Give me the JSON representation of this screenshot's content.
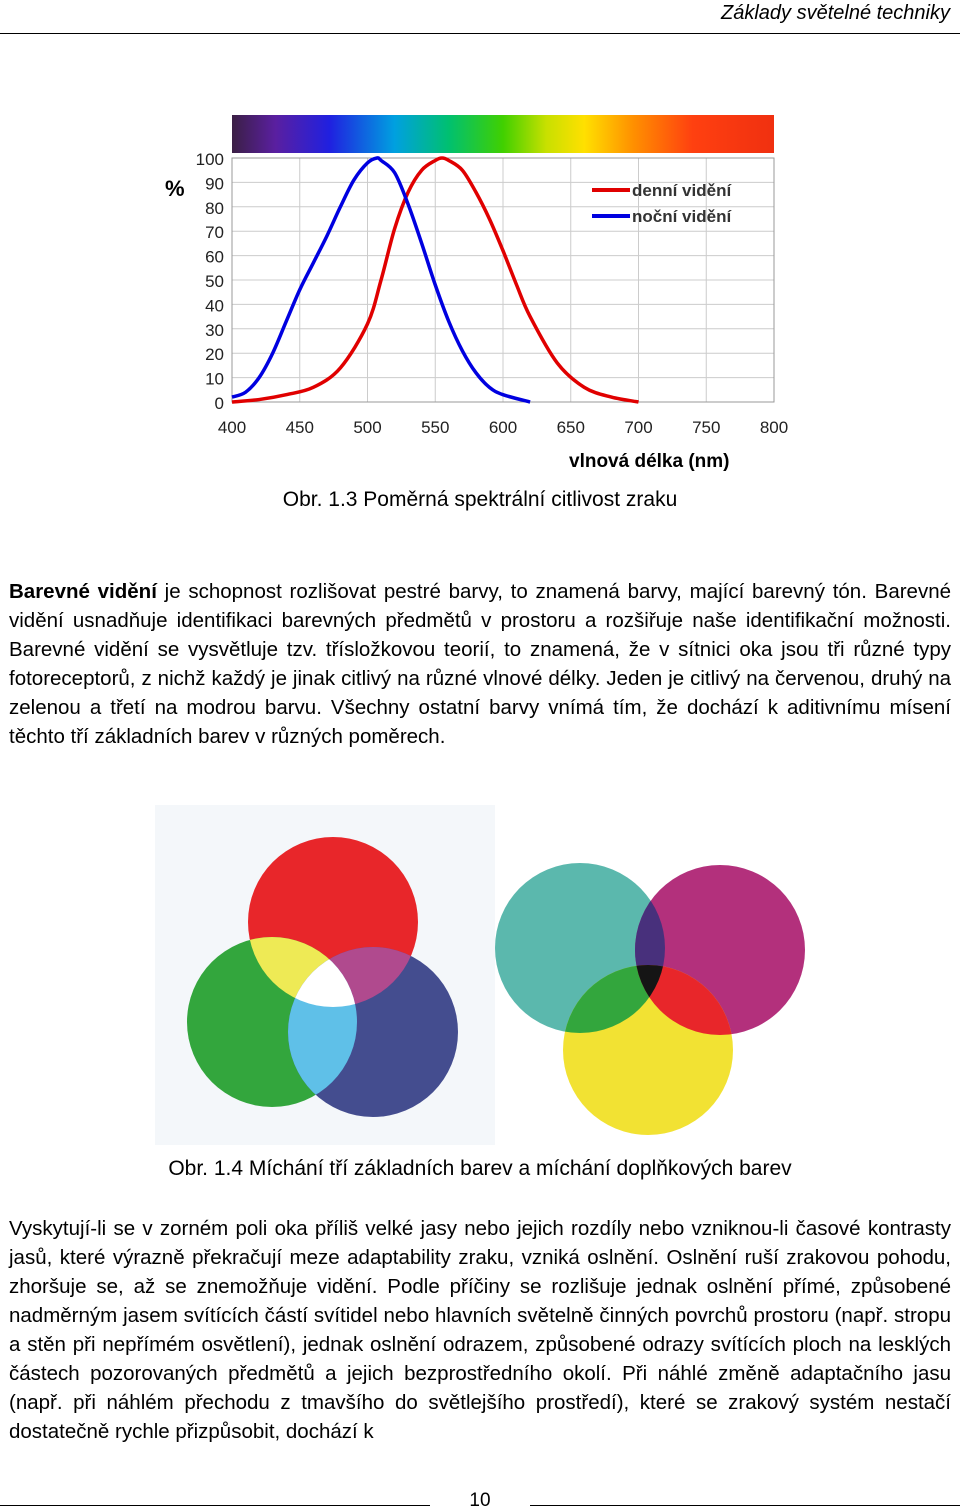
{
  "header": {
    "title": "Základy světelné techniky"
  },
  "chart_data": {
    "type": "line",
    "ylabel": "%",
    "xlabel": "vlnová délka (nm)",
    "xlim": [
      400,
      800
    ],
    "ylim": [
      0,
      100
    ],
    "xticks": [
      "400",
      "450",
      "500",
      "550",
      "600",
      "650",
      "700",
      "750",
      "800"
    ],
    "yticks": [
      "0",
      "10",
      "20",
      "30",
      "40",
      "50",
      "60",
      "70",
      "80",
      "90",
      "100"
    ],
    "grid": true,
    "legend_position": "top-right",
    "series": [
      {
        "name": "denní vidění",
        "color": "#e00000",
        "x": [
          400,
          420,
          440,
          460,
          480,
          500,
          510,
          520,
          530,
          540,
          550,
          555,
          560,
          570,
          580,
          590,
          600,
          610,
          620,
          640,
          660,
          680,
          700
        ],
        "y": [
          0,
          1,
          3,
          6,
          14,
          32,
          50,
          71,
          86,
          95,
          99,
          100,
          99,
          95,
          86,
          75,
          62,
          48,
          35,
          16,
          6,
          2,
          0
        ]
      },
      {
        "name": "noční vidění",
        "color": "#0000e0",
        "x": [
          400,
          410,
          420,
          430,
          440,
          450,
          460,
          470,
          480,
          490,
          500,
          507,
          510,
          520,
          530,
          540,
          550,
          560,
          570,
          580,
          590,
          600,
          620
        ],
        "y": [
          2,
          4,
          10,
          20,
          33,
          46,
          57,
          68,
          80,
          91,
          98,
          100,
          99,
          94,
          81,
          65,
          48,
          33,
          21,
          12,
          6,
          3,
          0
        ]
      }
    ]
  },
  "captions": {
    "fig13": "Obr. 1.3 Poměrná spektrální citlivost zraku",
    "fig14": "Obr. 1.4 Míchání tří základních barev a míchání doplňkových barev"
  },
  "paragraph1": {
    "bold": "Barevné vidění",
    "text": " je schopnost rozlišovat pestré barvy, to znamená barvy, mající barevný tón. Barevné vidění usnadňuje identifikaci barevných předmětů v prostoru a rozšiřuje naše identifikační možnosti. Barevné vidění se vysvětluje tzv. třísložkovou teorií, to znamená, že v sítnici oka jsou tři různé typy fotoreceptorů, z nichž každý je jinak citlivý na různé vlnové délky. Jeden je citlivý na červenou, druhý na zelenou a třetí na modrou barvu. Všechny ostatní barvy vnímá tím, že dochází k aditivnímu mísení těchto tří základních barev v různých poměrech."
  },
  "paragraph2": {
    "text": "Vyskytují-li se v zorném poli oka příliš velké jasy nebo jejich rozdíly nebo vzniknou-li časové kontrasty jasů, které výrazně překračují meze adaptability zraku, vzniká oslnění. Oslnění ruší zrakovou pohodu, zhoršuje se, až se znemožňuje vidění. Podle příčiny se rozlišuje jednak oslnění přímé, způsobené nadměrným jasem svítících částí svítidel nebo hlavních světelně činných povrchů prostoru (např. stropu a stěn při nepřímém osvětlení), jednak oslnění odrazem, způsobené odrazy svítících ploch na lesklých částech pozorovaných předmětů a jejich bezprostředního okolí. Při náhlé změně adaptačního jasu (např. při náhlém přechodu z tmavšího do světlejšího prostředí), které se zrakový systém nestačí dostatečně rychle přizpůsobit, dochází k"
  },
  "colors": {
    "additive": [
      "#e8262a",
      "#33a63d",
      "#444d8f"
    ],
    "subtractive": [
      "#5bb8ad",
      "#b3307c",
      "#f2e233"
    ]
  },
  "footer": {
    "page_number": "10"
  }
}
